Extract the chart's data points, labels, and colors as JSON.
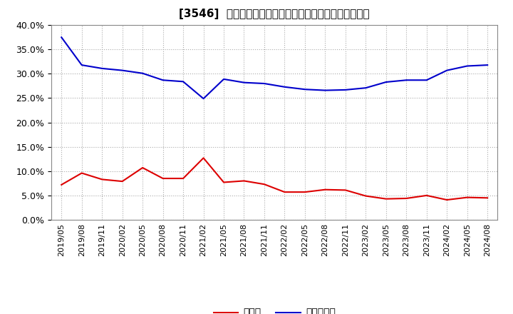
{
  "title": "[3546]  現預金、有利子負債の総資産に対する比率の推移",
  "x_labels": [
    "2019/05",
    "2019/08",
    "2019/11",
    "2020/02",
    "2020/05",
    "2020/08",
    "2020/11",
    "2021/02",
    "2021/05",
    "2021/08",
    "2021/11",
    "2022/02",
    "2022/05",
    "2022/08",
    "2022/11",
    "2023/02",
    "2023/05",
    "2023/08",
    "2023/11",
    "2024/02",
    "2024/05",
    "2024/08"
  ],
  "cash": [
    0.072,
    0.096,
    0.083,
    0.079,
    0.107,
    0.085,
    0.085,
    0.127,
    0.077,
    0.08,
    0.073,
    0.057,
    0.057,
    0.062,
    0.061,
    0.049,
    0.043,
    0.044,
    0.05,
    0.041,
    0.046,
    0.045
  ],
  "debt": [
    0.375,
    0.318,
    0.311,
    0.307,
    0.301,
    0.287,
    0.284,
    0.249,
    0.289,
    0.282,
    0.28,
    0.273,
    0.268,
    0.266,
    0.267,
    0.271,
    0.283,
    0.287,
    0.287,
    0.307,
    0.316,
    0.318
  ],
  "cash_color": "#dd0000",
  "debt_color": "#0000cc",
  "background_color": "#ffffff",
  "plot_bg_color": "#ffffff",
  "grid_color": "#aaaaaa",
  "legend_cash": "現預金",
  "legend_debt": "有利子負債",
  "ylim": [
    0.0,
    0.4
  ],
  "yticks": [
    0.0,
    0.05,
    0.1,
    0.15,
    0.2,
    0.25,
    0.3,
    0.35,
    0.4
  ],
  "title_fontsize": 11,
  "tick_fontsize": 8,
  "legend_fontsize": 10
}
